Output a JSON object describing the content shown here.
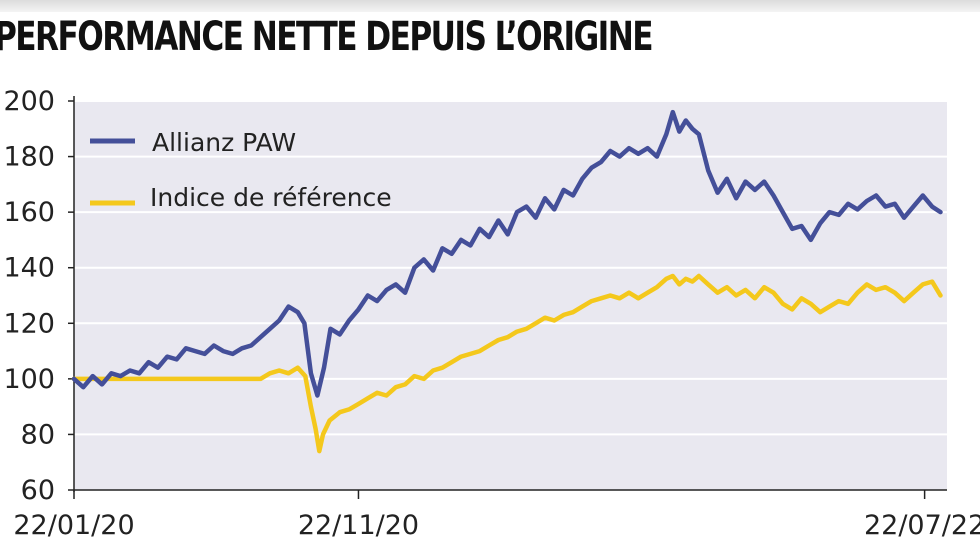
{
  "title": "PERFORMANCE NETTE DEPUIS L’ORIGINE",
  "chart_data": {
    "type": "line",
    "title": "PERFORMANCE NETTE DEPUIS L’ORIGINE",
    "ylim": [
      60,
      200
    ],
    "yticks": [
      60,
      80,
      100,
      120,
      140,
      160,
      180,
      200
    ],
    "ytick_labels": [
      "60",
      "80",
      "100",
      "120",
      "140",
      "160",
      "180",
      "200"
    ],
    "xticks": [
      "2020-01-22",
      "2020-11-22",
      "2022-07-22"
    ],
    "xtick_labels": [
      "22/01/20",
      "22/11/20",
      "22/07/22"
    ],
    "xlim": [
      "2020-01-22",
      "2022-08-15"
    ],
    "grid": true,
    "legend_position": "top-left",
    "series": [
      {
        "name": "Allianz PAW",
        "color": "#444f99",
        "points": [
          [
            "2020-01-22",
            100
          ],
          [
            "2020-02-01",
            97
          ],
          [
            "2020-02-11",
            101
          ],
          [
            "2020-02-21",
            98
          ],
          [
            "2020-03-02",
            102
          ],
          [
            "2020-03-12",
            101
          ],
          [
            "2020-03-22",
            103
          ],
          [
            "2020-04-01",
            102
          ],
          [
            "2020-04-11",
            106
          ],
          [
            "2020-04-21",
            104
          ],
          [
            "2020-05-01",
            108
          ],
          [
            "2020-05-11",
            107
          ],
          [
            "2020-05-21",
            111
          ],
          [
            "2020-05-31",
            110
          ],
          [
            "2020-06-10",
            109
          ],
          [
            "2020-06-20",
            112
          ],
          [
            "2020-06-30",
            110
          ],
          [
            "2020-07-10",
            109
          ],
          [
            "2020-07-20",
            111
          ],
          [
            "2020-07-30",
            112
          ],
          [
            "2020-08-09",
            115
          ],
          [
            "2020-08-19",
            118
          ],
          [
            "2020-08-29",
            121
          ],
          [
            "2020-09-08",
            126
          ],
          [
            "2020-09-18",
            124
          ],
          [
            "2020-09-25",
            120
          ],
          [
            "2020-10-02",
            102
          ],
          [
            "2020-10-09",
            94
          ],
          [
            "2020-10-16",
            104
          ],
          [
            "2020-10-23",
            118
          ],
          [
            "2020-11-02",
            116
          ],
          [
            "2020-11-12",
            121
          ],
          [
            "2020-11-22",
            125
          ],
          [
            "2020-12-02",
            130
          ],
          [
            "2020-12-12",
            128
          ],
          [
            "2020-12-22",
            132
          ],
          [
            "2021-01-01",
            134
          ],
          [
            "2021-01-11",
            131
          ],
          [
            "2021-01-21",
            140
          ],
          [
            "2021-01-31",
            143
          ],
          [
            "2021-02-10",
            139
          ],
          [
            "2021-02-20",
            147
          ],
          [
            "2021-03-02",
            145
          ],
          [
            "2021-03-12",
            150
          ],
          [
            "2021-03-22",
            148
          ],
          [
            "2021-04-01",
            154
          ],
          [
            "2021-04-11",
            151
          ],
          [
            "2021-04-21",
            157
          ],
          [
            "2021-05-01",
            152
          ],
          [
            "2021-05-11",
            160
          ],
          [
            "2021-05-21",
            162
          ],
          [
            "2021-05-31",
            158
          ],
          [
            "2021-06-10",
            165
          ],
          [
            "2021-06-20",
            161
          ],
          [
            "2021-06-30",
            168
          ],
          [
            "2021-07-10",
            166
          ],
          [
            "2021-07-20",
            172
          ],
          [
            "2021-07-30",
            176
          ],
          [
            "2021-08-09",
            178
          ],
          [
            "2021-08-19",
            182
          ],
          [
            "2021-08-29",
            180
          ],
          [
            "2021-09-08",
            183
          ],
          [
            "2021-09-18",
            181
          ],
          [
            "2021-09-28",
            183
          ],
          [
            "2021-10-08",
            180
          ],
          [
            "2021-10-18",
            188
          ],
          [
            "2021-10-25",
            196
          ],
          [
            "2021-11-01",
            189
          ],
          [
            "2021-11-08",
            193
          ],
          [
            "2021-11-15",
            190
          ],
          [
            "2021-11-22",
            188
          ],
          [
            "2021-12-02",
            175
          ],
          [
            "2021-12-12",
            167
          ],
          [
            "2021-12-22",
            172
          ],
          [
            "2022-01-01",
            165
          ],
          [
            "2022-01-11",
            171
          ],
          [
            "2022-01-21",
            168
          ],
          [
            "2022-01-31",
            171
          ],
          [
            "2022-02-10",
            166
          ],
          [
            "2022-02-20",
            160
          ],
          [
            "2022-03-02",
            154
          ],
          [
            "2022-03-12",
            155
          ],
          [
            "2022-03-22",
            150
          ],
          [
            "2022-04-01",
            156
          ],
          [
            "2022-04-11",
            160
          ],
          [
            "2022-04-21",
            159
          ],
          [
            "2022-05-01",
            163
          ],
          [
            "2022-05-11",
            161
          ],
          [
            "2022-05-21",
            164
          ],
          [
            "2022-05-31",
            166
          ],
          [
            "2022-06-10",
            162
          ],
          [
            "2022-06-20",
            163
          ],
          [
            "2022-06-30",
            158
          ],
          [
            "2022-07-10",
            162
          ],
          [
            "2022-07-20",
            166
          ],
          [
            "2022-07-30",
            162
          ],
          [
            "2022-08-08",
            160
          ]
        ]
      },
      {
        "name": "Indice de référence",
        "color": "#f4c81c",
        "points": [
          [
            "2020-01-22",
            100
          ],
          [
            "2020-02-11",
            100
          ],
          [
            "2020-03-02",
            100
          ],
          [
            "2020-04-01",
            100
          ],
          [
            "2020-05-01",
            100
          ],
          [
            "2020-06-01",
            100
          ],
          [
            "2020-07-01",
            100
          ],
          [
            "2020-08-01",
            100
          ],
          [
            "2020-08-09",
            100
          ],
          [
            "2020-08-19",
            102
          ],
          [
            "2020-08-29",
            103
          ],
          [
            "2020-09-08",
            102
          ],
          [
            "2020-09-18",
            104
          ],
          [
            "2020-09-26",
            101
          ],
          [
            "2020-10-02",
            90
          ],
          [
            "2020-10-07",
            82
          ],
          [
            "2020-10-11",
            74
          ],
          [
            "2020-10-15",
            80
          ],
          [
            "2020-10-22",
            85
          ],
          [
            "2020-11-02",
            88
          ],
          [
            "2020-11-12",
            89
          ],
          [
            "2020-11-22",
            91
          ],
          [
            "2020-12-02",
            93
          ],
          [
            "2020-12-12",
            95
          ],
          [
            "2020-12-22",
            94
          ],
          [
            "2021-01-01",
            97
          ],
          [
            "2021-01-11",
            98
          ],
          [
            "2021-01-21",
            101
          ],
          [
            "2021-01-31",
            100
          ],
          [
            "2021-02-10",
            103
          ],
          [
            "2021-02-20",
            104
          ],
          [
            "2021-03-02",
            106
          ],
          [
            "2021-03-12",
            108
          ],
          [
            "2021-03-22",
            109
          ],
          [
            "2021-04-01",
            110
          ],
          [
            "2021-04-11",
            112
          ],
          [
            "2021-04-21",
            114
          ],
          [
            "2021-05-01",
            115
          ],
          [
            "2021-05-11",
            117
          ],
          [
            "2021-05-21",
            118
          ],
          [
            "2021-05-31",
            120
          ],
          [
            "2021-06-10",
            122
          ],
          [
            "2021-06-20",
            121
          ],
          [
            "2021-06-30",
            123
          ],
          [
            "2021-07-10",
            124
          ],
          [
            "2021-07-20",
            126
          ],
          [
            "2021-07-30",
            128
          ],
          [
            "2021-08-09",
            129
          ],
          [
            "2021-08-19",
            130
          ],
          [
            "2021-08-29",
            129
          ],
          [
            "2021-09-08",
            131
          ],
          [
            "2021-09-18",
            129
          ],
          [
            "2021-09-28",
            131
          ],
          [
            "2021-10-08",
            133
          ],
          [
            "2021-10-18",
            136
          ],
          [
            "2021-10-25",
            137
          ],
          [
            "2021-11-01",
            134
          ],
          [
            "2021-11-08",
            136
          ],
          [
            "2021-11-15",
            135
          ],
          [
            "2021-11-22",
            137
          ],
          [
            "2021-12-02",
            134
          ],
          [
            "2021-12-12",
            131
          ],
          [
            "2021-12-22",
            133
          ],
          [
            "2022-01-01",
            130
          ],
          [
            "2022-01-11",
            132
          ],
          [
            "2022-01-21",
            129
          ],
          [
            "2022-01-31",
            133
          ],
          [
            "2022-02-10",
            131
          ],
          [
            "2022-02-20",
            127
          ],
          [
            "2022-03-02",
            125
          ],
          [
            "2022-03-12",
            129
          ],
          [
            "2022-03-22",
            127
          ],
          [
            "2022-04-01",
            124
          ],
          [
            "2022-04-11",
            126
          ],
          [
            "2022-04-21",
            128
          ],
          [
            "2022-05-01",
            127
          ],
          [
            "2022-05-11",
            131
          ],
          [
            "2022-05-21",
            134
          ],
          [
            "2022-05-31",
            132
          ],
          [
            "2022-06-10",
            133
          ],
          [
            "2022-06-20",
            131
          ],
          [
            "2022-06-30",
            128
          ],
          [
            "2022-07-10",
            131
          ],
          [
            "2022-07-20",
            134
          ],
          [
            "2022-07-30",
            135
          ],
          [
            "2022-08-08",
            130
          ]
        ]
      }
    ]
  }
}
